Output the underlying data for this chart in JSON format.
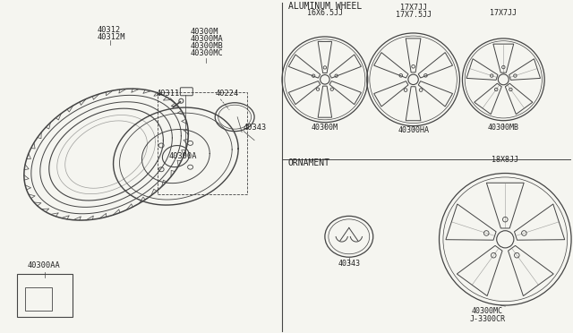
{
  "bg_color": "#f5f5f0",
  "line_color": "#444444",
  "text_color": "#222222",
  "section_alum_label": "ALUMINUM WHEEL",
  "section_orn_label": "ORNAMENT",
  "footer_label": "J-3300CR",
  "wheel1_size": "16X6.5JJ",
  "wheel1_label": "40300M",
  "wheel2_size1": "17X7JJ",
  "wheel2_size2": "17X7.5JJ",
  "wheel2_label": "40300HA",
  "wheel3_size": "17X7JJ",
  "wheel3_label": "40300MB",
  "wheel4_size": "18X8JJ",
  "wheel4_label": "40300MC",
  "orn_label": "40343",
  "part_40312": "40312",
  "part_40312M": "40312M",
  "part_40300M": "40300M",
  "part_40300MA": "40300MA",
  "part_40300MB": "40300MB",
  "part_40300MC": "40300MC",
  "part_40311": "40311",
  "part_40224": "40224",
  "part_40343": "40343",
  "part_40300A": "40300A",
  "part_40300AA": "40300AA"
}
